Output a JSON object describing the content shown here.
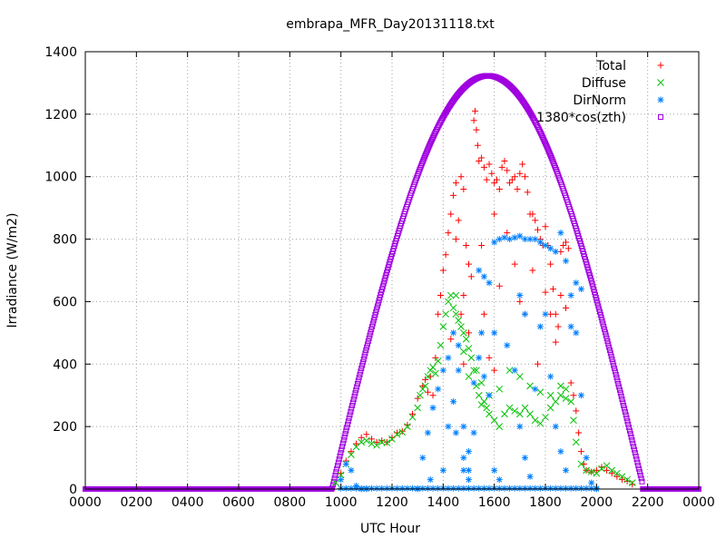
{
  "chart_data": {
    "type": "scatter",
    "title": "embrapa_MFR_Day20131118.txt",
    "xlabel": "UTC Hour",
    "ylabel": "Irradiance (W/m2)",
    "xlim": [
      0,
      2400
    ],
    "ylim": [
      0,
      1400
    ],
    "x_ticks": [
      "0000",
      "0200",
      "0400",
      "0600",
      "0800",
      "1000",
      "1200",
      "1400",
      "1600",
      "1800",
      "2000",
      "2200",
      "0000"
    ],
    "y_ticks": [
      "0",
      "200",
      "400",
      "600",
      "800",
      "1000",
      "1200",
      "1400"
    ],
    "grid": true,
    "legend_position": "top-right",
    "series": [
      {
        "name": "Total",
        "marker": "plus",
        "color": "#ff0000",
        "points": [
          [
            1000,
            50
          ],
          [
            1020,
            90
          ],
          [
            1040,
            120
          ],
          [
            1060,
            145
          ],
          [
            1080,
            165
          ],
          [
            1100,
            175
          ],
          [
            1120,
            160
          ],
          [
            1140,
            150
          ],
          [
            1160,
            155
          ],
          [
            1180,
            150
          ],
          [
            1200,
            165
          ],
          [
            1220,
            180
          ],
          [
            1240,
            185
          ],
          [
            1260,
            205
          ],
          [
            1280,
            240
          ],
          [
            1300,
            290
          ],
          [
            1320,
            330
          ],
          [
            1330,
            350
          ],
          [
            1340,
            310
          ],
          [
            1350,
            360
          ],
          [
            1360,
            300
          ],
          [
            1370,
            420
          ],
          [
            1380,
            560
          ],
          [
            1390,
            620
          ],
          [
            1400,
            700
          ],
          [
            1410,
            750
          ],
          [
            1420,
            820
          ],
          [
            1430,
            880
          ],
          [
            1440,
            940
          ],
          [
            1450,
            980
          ],
          [
            1460,
            860
          ],
          [
            1470,
            1000
          ],
          [
            1480,
            960
          ],
          [
            1490,
            780
          ],
          [
            1500,
            720
          ],
          [
            1510,
            680
          ],
          [
            1520,
            1180
          ],
          [
            1525,
            1210
          ],
          [
            1530,
            1150
          ],
          [
            1535,
            1100
          ],
          [
            1540,
            1050
          ],
          [
            1550,
            1060
          ],
          [
            1560,
            1030
          ],
          [
            1570,
            990
          ],
          [
            1580,
            1040
          ],
          [
            1590,
            1010
          ],
          [
            1600,
            980
          ],
          [
            1610,
            990
          ],
          [
            1620,
            960
          ],
          [
            1630,
            1030
          ],
          [
            1640,
            1050
          ],
          [
            1650,
            1020
          ],
          [
            1660,
            980
          ],
          [
            1670,
            990
          ],
          [
            1680,
            1000
          ],
          [
            1690,
            960
          ],
          [
            1700,
            1010
          ],
          [
            1710,
            1040
          ],
          [
            1720,
            1000
          ],
          [
            1730,
            950
          ],
          [
            1740,
            880
          ],
          [
            1750,
            880
          ],
          [
            1760,
            860
          ],
          [
            1770,
            830
          ],
          [
            1780,
            800
          ],
          [
            1790,
            780
          ],
          [
            1800,
            840
          ],
          [
            1810,
            780
          ],
          [
            1820,
            720
          ],
          [
            1830,
            640
          ],
          [
            1840,
            560
          ],
          [
            1850,
            520
          ],
          [
            1860,
            760
          ],
          [
            1870,
            780
          ],
          [
            1880,
            790
          ],
          [
            1890,
            770
          ],
          [
            1900,
            340
          ],
          [
            1910,
            300
          ],
          [
            1920,
            250
          ],
          [
            1930,
            180
          ],
          [
            1940,
            120
          ],
          [
            1950,
            80
          ],
          [
            1960,
            60
          ],
          [
            1980,
            55
          ],
          [
            2000,
            60
          ],
          [
            2020,
            70
          ],
          [
            2040,
            60
          ],
          [
            2060,
            50
          ],
          [
            2080,
            40
          ],
          [
            2100,
            30
          ],
          [
            2120,
            25
          ],
          [
            2140,
            15
          ],
          [
            1450,
            800
          ],
          [
            1480,
            620
          ],
          [
            1500,
            500
          ],
          [
            1560,
            560
          ],
          [
            1580,
            420
          ],
          [
            1600,
            380
          ],
          [
            1620,
            650
          ],
          [
            1650,
            820
          ],
          [
            1700,
            600
          ],
          [
            1720,
            560
          ],
          [
            1750,
            700
          ],
          [
            1770,
            400
          ],
          [
            1600,
            880
          ],
          [
            1550,
            780
          ],
          [
            1680,
            720
          ],
          [
            1480,
            400
          ],
          [
            1430,
            480
          ],
          [
            1470,
            560
          ],
          [
            1800,
            630
          ],
          [
            1820,
            560
          ],
          [
            1840,
            470
          ],
          [
            1860,
            620
          ],
          [
            1880,
            580
          ]
        ]
      },
      {
        "name": "Diffuse",
        "marker": "cross",
        "color": "#00c000",
        "points": [
          [
            980,
            20
          ],
          [
            1000,
            45
          ],
          [
            1020,
            80
          ],
          [
            1040,
            110
          ],
          [
            1060,
            135
          ],
          [
            1080,
            150
          ],
          [
            1100,
            155
          ],
          [
            1120,
            145
          ],
          [
            1140,
            140
          ],
          [
            1160,
            150
          ],
          [
            1180,
            148
          ],
          [
            1200,
            160
          ],
          [
            1220,
            175
          ],
          [
            1240,
            182
          ],
          [
            1260,
            200
          ],
          [
            1280,
            230
          ],
          [
            1300,
            260
          ],
          [
            1310,
            300
          ],
          [
            1320,
            320
          ],
          [
            1330,
            330
          ],
          [
            1340,
            360
          ],
          [
            1350,
            380
          ],
          [
            1360,
            390
          ],
          [
            1370,
            370
          ],
          [
            1380,
            410
          ],
          [
            1390,
            460
          ],
          [
            1400,
            520
          ],
          [
            1410,
            560
          ],
          [
            1420,
            600
          ],
          [
            1430,
            620
          ],
          [
            1440,
            580
          ],
          [
            1450,
            560
          ],
          [
            1460,
            540
          ],
          [
            1470,
            520
          ],
          [
            1480,
            500
          ],
          [
            1490,
            480
          ],
          [
            1500,
            450
          ],
          [
            1510,
            420
          ],
          [
            1520,
            380
          ],
          [
            1530,
            330
          ],
          [
            1540,
            300
          ],
          [
            1550,
            270
          ],
          [
            1560,
            280
          ],
          [
            1570,
            260
          ],
          [
            1580,
            240
          ],
          [
            1600,
            220
          ],
          [
            1620,
            200
          ],
          [
            1640,
            240
          ],
          [
            1660,
            260
          ],
          [
            1680,
            250
          ],
          [
            1700,
            240
          ],
          [
            1720,
            260
          ],
          [
            1740,
            240
          ],
          [
            1760,
            220
          ],
          [
            1780,
            210
          ],
          [
            1800,
            230
          ],
          [
            1820,
            260
          ],
          [
            1840,
            280
          ],
          [
            1860,
            300
          ],
          [
            1880,
            290
          ],
          [
            1900,
            280
          ],
          [
            1910,
            220
          ],
          [
            1920,
            150
          ],
          [
            1940,
            80
          ],
          [
            1960,
            60
          ],
          [
            1980,
            55
          ],
          [
            2000,
            50
          ],
          [
            2020,
            65
          ],
          [
            2040,
            75
          ],
          [
            2060,
            60
          ],
          [
            2080,
            50
          ],
          [
            2100,
            40
          ],
          [
            2120,
            30
          ],
          [
            2140,
            20
          ],
          [
            1450,
            620
          ],
          [
            1480,
            440
          ],
          [
            1500,
            360
          ],
          [
            1530,
            380
          ],
          [
            1550,
            340
          ],
          [
            1580,
            300
          ],
          [
            1620,
            320
          ],
          [
            1660,
            380
          ],
          [
            1700,
            360
          ],
          [
            1740,
            330
          ],
          [
            1780,
            310
          ],
          [
            1820,
            300
          ],
          [
            1860,
            330
          ],
          [
            1880,
            320
          ]
        ]
      },
      {
        "name": "DirNorm",
        "marker": "star",
        "color": "#0080ff",
        "points": [
          [
            1000,
            30
          ],
          [
            1020,
            80
          ],
          [
            1040,
            60
          ],
          [
            1060,
            10
          ],
          [
            1080,
            0
          ],
          [
            1100,
            0
          ],
          [
            1300,
            0
          ],
          [
            1320,
            100
          ],
          [
            1340,
            180
          ],
          [
            1360,
            260
          ],
          [
            1380,
            320
          ],
          [
            1400,
            380
          ],
          [
            1420,
            420
          ],
          [
            1440,
            500
          ],
          [
            1460,
            460
          ],
          [
            1480,
            200
          ],
          [
            1500,
            120
          ],
          [
            1520,
            340
          ],
          [
            1540,
            700
          ],
          [
            1560,
            680
          ],
          [
            1580,
            660
          ],
          [
            1600,
            790
          ],
          [
            1620,
            800
          ],
          [
            1640,
            805
          ],
          [
            1660,
            800
          ],
          [
            1680,
            805
          ],
          [
            1700,
            810
          ],
          [
            1720,
            800
          ],
          [
            1740,
            800
          ],
          [
            1760,
            800
          ],
          [
            1780,
            790
          ],
          [
            1800,
            780
          ],
          [
            1820,
            770
          ],
          [
            1840,
            760
          ],
          [
            1860,
            820
          ],
          [
            1880,
            730
          ],
          [
            1900,
            620
          ],
          [
            1920,
            500
          ],
          [
            1940,
            300
          ],
          [
            1960,
            100
          ],
          [
            1980,
            20
          ],
          [
            2000,
            0
          ],
          [
            1450,
            180
          ],
          [
            1480,
            60
          ],
          [
            1500,
            60
          ],
          [
            1520,
            180
          ],
          [
            1540,
            420
          ],
          [
            1560,
            360
          ],
          [
            1580,
            300
          ],
          [
            1600,
            60
          ],
          [
            1620,
            30
          ],
          [
            1650,
            460
          ],
          [
            1680,
            380
          ],
          [
            1700,
            200
          ],
          [
            1720,
            100
          ],
          [
            1740,
            40
          ],
          [
            1760,
            320
          ],
          [
            1780,
            520
          ],
          [
            1800,
            560
          ],
          [
            1820,
            360
          ],
          [
            1840,
            200
          ],
          [
            1860,
            120
          ],
          [
            1880,
            60
          ],
          [
            1900,
            520
          ],
          [
            1920,
            660
          ],
          [
            1940,
            640
          ],
          [
            1420,
            200
          ],
          [
            1440,
            280
          ],
          [
            1460,
            380
          ],
          [
            1480,
            100
          ],
          [
            1500,
            30
          ],
          [
            1350,
            30
          ],
          [
            1400,
            60
          ],
          [
            1550,
            500
          ],
          [
            1600,
            500
          ],
          [
            1700,
            620
          ],
          [
            1720,
            560
          ]
        ]
      },
      {
        "name": "1380*cos(zth)",
        "marker": "square",
        "color": "#a000e0",
        "curve": {
          "amplitude": 1380,
          "offset": -55,
          "x_rise": 960,
          "x_set": 2180,
          "x_peak": 1575,
          "peak": 1323
        }
      }
    ]
  }
}
